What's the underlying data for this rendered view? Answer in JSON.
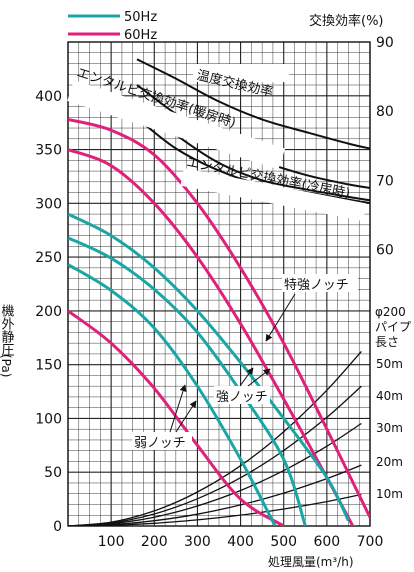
{
  "chart_data": {
    "type": "line",
    "legend": [
      {
        "label": "50Hz",
        "color": "#1aa6a6"
      },
      {
        "label": "60Hz",
        "color": "#e0207a"
      }
    ],
    "xlabel": "処理風量(m³/h)",
    "ylabel_left": "機外静圧",
    "ylabel_left_unit": "(Pa)",
    "ylabel_right": "交換効率(%)",
    "xlim": [
      0,
      700
    ],
    "ylim_left": [
      0,
      450
    ],
    "ylim_right": [
      20,
      90
    ],
    "grid": true,
    "x_ticks": [
      "100",
      "200",
      "300",
      "400",
      "500",
      "600",
      "700"
    ],
    "y_ticks_left": [
      "0",
      "50",
      "100",
      "150",
      "200",
      "250",
      "300",
      "350",
      "400"
    ],
    "y_ticks_right": [
      "60",
      "70",
      "80",
      "90"
    ],
    "pipe_label": [
      "φ200",
      "パイプ",
      "長さ"
    ],
    "pipe_lengths": [
      "10m",
      "20m",
      "30m",
      "40m",
      "50m"
    ],
    "efficiency_series": [
      {
        "name": "温度交換効率",
        "x": [
          160,
          250,
          350,
          450,
          550,
          650,
          700
        ],
        "y": [
          87.5,
          84.7,
          81.4,
          78.8,
          77.0,
          75.3,
          74.6
        ]
      },
      {
        "name": "エンタルピ交換効率(暖房時)",
        "x": [
          160,
          250,
          350,
          450,
          550,
          650,
          700
        ],
        "y": [
          83.8,
          79.6,
          75.8,
          72.8,
          70.8,
          69.4,
          68.9
        ]
      },
      {
        "name": "エンタルピ交換効率(冷房時)",
        "x": [
          160,
          250,
          350,
          450,
          550,
          650,
          700
        ],
        "y": [
          81.2,
          76.6,
          72.5,
          70.0,
          68.7,
          67.6,
          67.1
        ]
      },
      {
        "name": "",
        "x": [
          160,
          250,
          350,
          450,
          550,
          650,
          700
        ],
        "y": [
          79.0,
          74.6,
          71.4,
          69.3,
          68.3,
          67.2,
          66.7
        ]
      }
    ],
    "pressure_series_50hz": [
      {
        "name": "強ノッチ",
        "x": [
          0,
          100,
          200,
          300,
          400,
          500,
          600,
          650
        ],
        "y": [
          290,
          270,
          240,
          200,
          152,
          100,
          45,
          5
        ]
      },
      {
        "name": "",
        "x": [
          0,
          100,
          200,
          300,
          400,
          500,
          550
        ],
        "y": [
          268,
          249,
          220,
          180,
          125,
          62,
          0
        ]
      },
      {
        "name": "弱ノッチ",
        "x": [
          0,
          100,
          200,
          300,
          400,
          480
        ],
        "y": [
          243,
          219,
          184,
          130,
          62,
          0
        ]
      }
    ],
    "pressure_series_60hz": [
      {
        "name": "特強ノッチ",
        "x": [
          0,
          100,
          200,
          300,
          400,
          500,
          600,
          700
        ],
        "y": [
          378,
          368,
          345,
          300,
          240,
          170,
          90,
          8
        ]
      },
      {
        "name": "",
        "x": [
          0,
          100,
          200,
          300,
          400,
          500,
          600,
          700
        ],
        "y": [
          350,
          335,
          300,
          250,
          188,
          118,
          45,
          -30
        ]
      },
      {
        "name": "",
        "x": [
          0,
          100,
          200,
          300,
          400,
          500
        ],
        "y": [
          200,
          170,
          128,
          75,
          25,
          0
        ]
      }
    ],
    "system_curves": [
      {
        "name": "10m",
        "x": [
          0,
          100,
          200,
          300,
          400,
          500,
          600,
          680
        ],
        "y": [
          0,
          0.6,
          2.5,
          5.7,
          10.1,
          15.8,
          22.7,
          29.3
        ]
      },
      {
        "name": "20m",
        "x": [
          0,
          100,
          200,
          300,
          400,
          500,
          600,
          680
        ],
        "y": [
          0,
          1.2,
          4.9,
          11.0,
          19.6,
          30.6,
          44.1,
          56.6
        ]
      },
      {
        "name": "30m",
        "x": [
          0,
          100,
          200,
          300,
          400,
          500,
          600,
          680
        ],
        "y": [
          0,
          2.1,
          8.2,
          18.6,
          33.0,
          51.5,
          74.2,
          95.3
        ]
      },
      {
        "name": "40m",
        "x": [
          0,
          100,
          200,
          300,
          400,
          500,
          600,
          680
        ],
        "y": [
          0,
          2.8,
          11.2,
          25.3,
          44.9,
          70.2,
          101.1,
          129.9
        ]
      },
      {
        "name": "50m",
        "x": [
          0,
          100,
          200,
          300,
          400,
          500,
          600,
          680
        ],
        "y": [
          0,
          3.5,
          14.0,
          31.6,
          56.1,
          87.7,
          126.3,
          162.3
        ]
      }
    ],
    "annotations": [
      "温度交換効率",
      "エンタルピ交換効率(暖房時)",
      "エンタルピ交換効率(冷房時)",
      "特強ノッチ",
      "強ノッチ",
      "弱ノッチ"
    ]
  }
}
